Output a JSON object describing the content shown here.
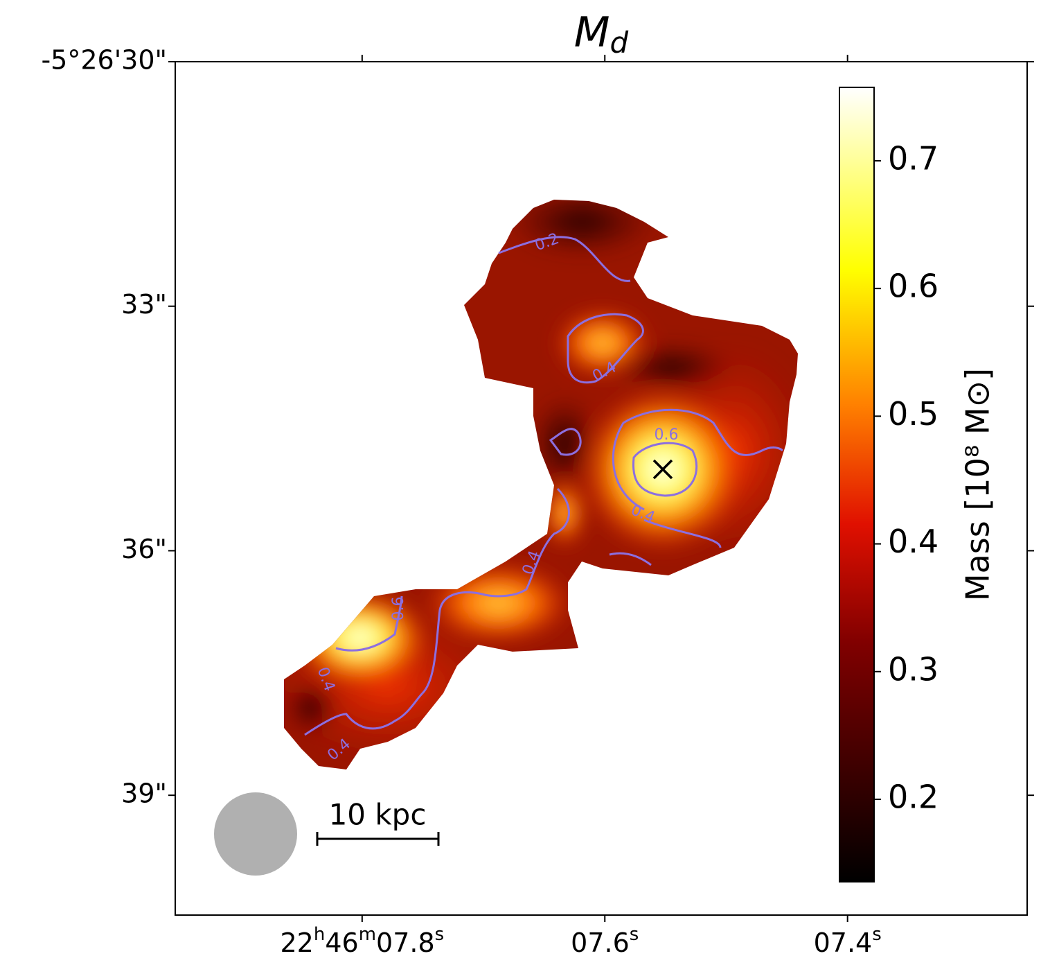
{
  "chart_data": {
    "type": "image",
    "title": {
      "main": "M",
      "sub": "d"
    },
    "xlim": [
      7.954,
      7.252
    ],
    "xticks": [
      {
        "value": 7.8,
        "label": "22h46m07.8s"
      },
      {
        "value": 7.6,
        "label": "07.6s"
      },
      {
        "value": 7.4,
        "label": "07.4s"
      }
    ],
    "ylim": [
      40.47,
      30
    ],
    "yticks": [
      {
        "value": 30,
        "label": "-5°26'30\""
      },
      {
        "value": 33,
        "label": "33\""
      },
      {
        "value": 36,
        "label": "36\""
      },
      {
        "value": 39,
        "label": "39\""
      }
    ],
    "colorbar": {
      "label": "Mass [10⁸ M⊙]",
      "colormap": "hot",
      "lim": [
        0.1354,
        0.7575
      ],
      "ticks": [
        0.2,
        0.3,
        0.4,
        0.5,
        0.6,
        0.7
      ]
    },
    "contours": {
      "color": "#8c6fe0",
      "labels": [
        0.2,
        0.4,
        0.4,
        0.6,
        0.4,
        0.6,
        0.4,
        0.4
      ]
    },
    "scale_bar": "10 kpc"
  }
}
